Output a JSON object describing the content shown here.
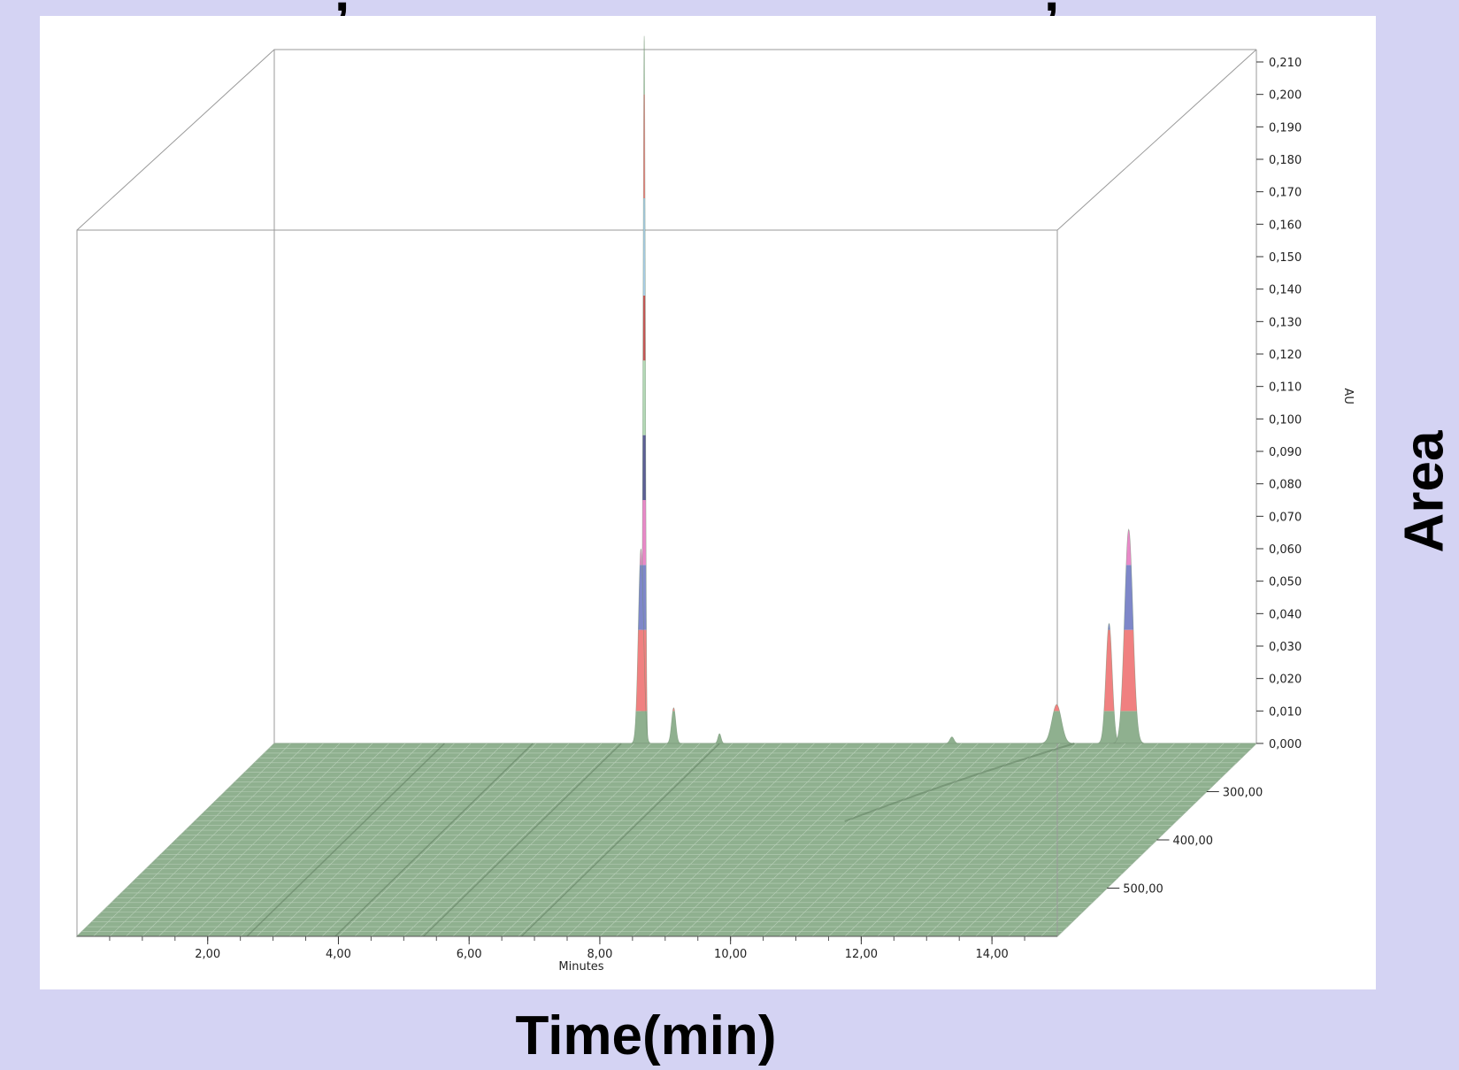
{
  "top_fragment": {
    "left": ",",
    "right": ","
  },
  "outer_labels": {
    "x": "Time(min)",
    "y": "Area"
  },
  "chart_data": {
    "type": "area",
    "projection": "3d-waterfall",
    "x_label": "Minutes",
    "y_label": "AU",
    "x_ticks": [
      "2,00",
      "4,00",
      "6,00",
      "8,00",
      "10,00",
      "12,00",
      "14,00"
    ],
    "x_tick_values": [
      2,
      4,
      6,
      8,
      10,
      12,
      14
    ],
    "xlim": [
      0,
      15
    ],
    "y_ticks": [
      "0,000",
      "0,010",
      "0,020",
      "0,030",
      "0,040",
      "0,050",
      "0,060",
      "0,070",
      "0,080",
      "0,090",
      "0,100",
      "0,110",
      "0,120",
      "0,130",
      "0,140",
      "0,150",
      "0,160",
      "0,170",
      "0,180",
      "0,190",
      "0,200",
      "0,210"
    ],
    "y_tick_values": [
      0,
      0.01,
      0.02,
      0.03,
      0.04,
      0.05,
      0.06,
      0.07,
      0.08,
      0.09,
      0.1,
      0.11,
      0.12,
      0.13,
      0.14,
      0.15,
      0.16,
      0.17,
      0.18,
      0.19,
      0.2,
      0.21
    ],
    "ylim": [
      0,
      0.22
    ],
    "z_ticks": [
      "300,00",
      "400,00",
      "500,00"
    ],
    "z_tick_values": [
      300,
      400,
      500
    ],
    "peaks": [
      {
        "time": 5.65,
        "au": 0.218
      },
      {
        "time": 5.6,
        "au": 0.06
      },
      {
        "time": 6.1,
        "au": 0.011
      },
      {
        "time": 6.8,
        "au": 0.003
      },
      {
        "time": 10.35,
        "au": 0.002
      },
      {
        "time": 11.95,
        "au": 0.012
      },
      {
        "time": 12.75,
        "au": 0.037
      },
      {
        "time": 13.05,
        "au": 0.066
      }
    ],
    "colors": {
      "base": "#8fb08f",
      "band_red": "#f08080",
      "band_blue": "#7e87c9",
      "band_pink": "#e889c8",
      "band_navy": "#5d5f95",
      "band_lightblue": "#a9cde6",
      "band_darkred": "#c25555",
      "band_palegreen": "#b3d8b6"
    }
  }
}
